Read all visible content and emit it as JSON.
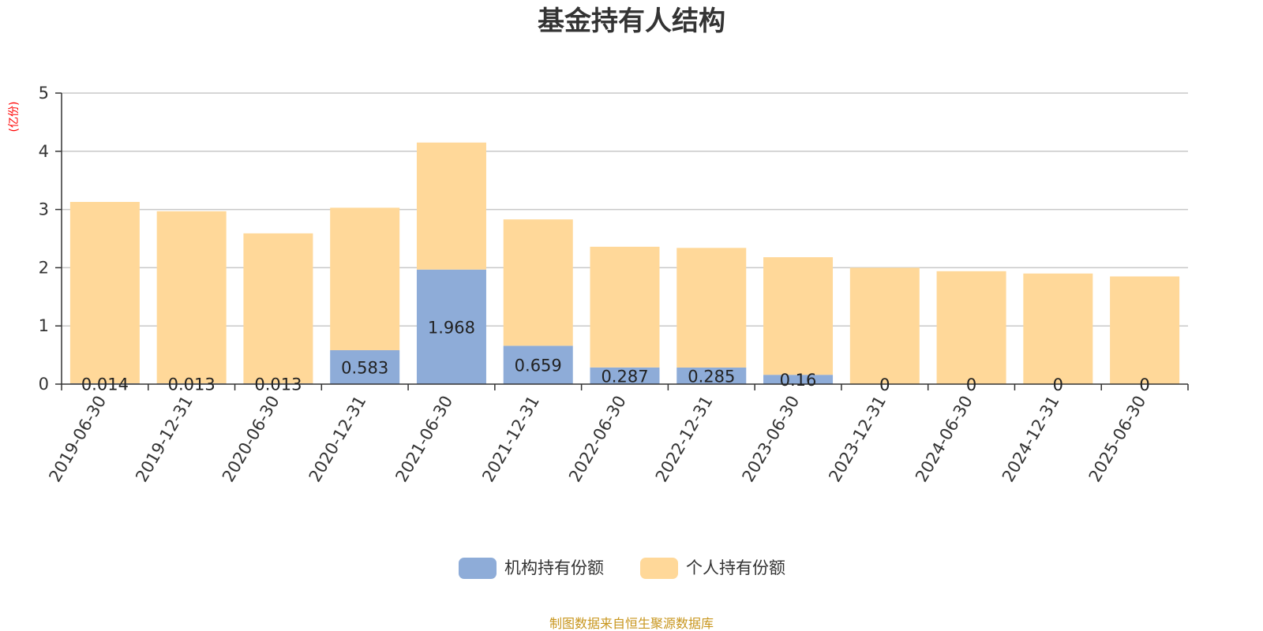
{
  "chart_data": {
    "type": "bar",
    "stacked": true,
    "title": "基金持有人结构",
    "unit_label": "(亿份)",
    "categories": [
      "2019-06-30",
      "2019-12-31",
      "2020-06-30",
      "2020-12-31",
      "2021-06-30",
      "2021-12-31",
      "2022-06-30",
      "2022-12-31",
      "2023-06-30",
      "2023-12-31",
      "2024-06-30",
      "2024-12-31",
      "2025-06-30"
    ],
    "series": [
      {
        "name": "机构持有份额",
        "color": "#8eacd8",
        "values": [
          0.014,
          0.013,
          0.013,
          0.583,
          1.968,
          0.659,
          0.287,
          0.285,
          0.16,
          0,
          0,
          0,
          0
        ],
        "labels": [
          "0.014",
          "0.013",
          "0.013",
          "0.583",
          "1.968",
          "0.659",
          "0.287",
          "0.285",
          "0.16",
          "0",
          "0",
          "0",
          "0"
        ]
      },
      {
        "name": "个人持有份额",
        "color": "#ffd899",
        "values": [
          3.116,
          2.957,
          2.577,
          2.447,
          2.182,
          2.171,
          2.073,
          2.055,
          2.02,
          2.0,
          1.94,
          1.9,
          1.85
        ]
      }
    ],
    "ylim": [
      0,
      5
    ],
    "yticks": [
      0,
      1,
      2,
      3,
      4,
      5
    ],
    "grid": true,
    "legend_position": "bottom"
  },
  "footer": {
    "source": "制图数据来自恒生聚源数据库"
  }
}
